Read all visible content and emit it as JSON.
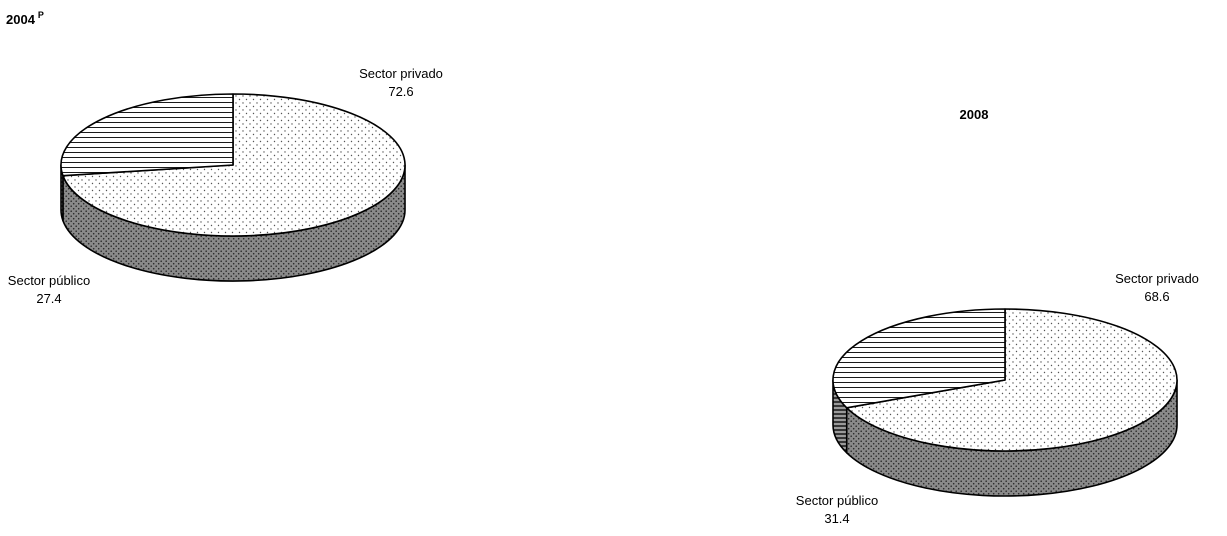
{
  "chart_data": [
    {
      "type": "pie",
      "title": "2004",
      "title_superscript": "P",
      "slices": [
        {
          "label": "Sector privado",
          "value": 72.6,
          "pattern": "dots"
        },
        {
          "label": "Sector público",
          "value": 27.4,
          "pattern": "hlines"
        }
      ]
    },
    {
      "type": "pie",
      "title": "2008",
      "title_superscript": "",
      "slices": [
        {
          "label": "Sector privado",
          "value": 68.6,
          "pattern": "dots"
        },
        {
          "label": "Sector público",
          "value": 31.4,
          "pattern": "hlines"
        }
      ]
    }
  ]
}
